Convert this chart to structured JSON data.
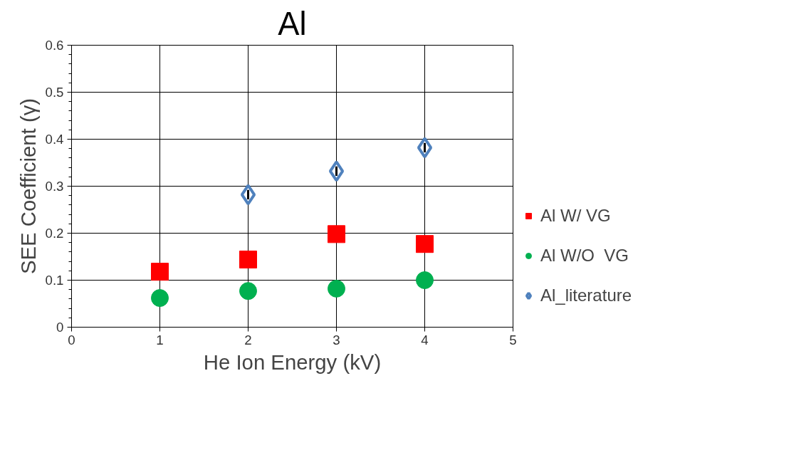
{
  "chart_data": {
    "type": "scatter",
    "title": "Al",
    "xlabel": "He Ion Energy (kV)",
    "ylabel": "SEE Coefficient (γ)",
    "xlim": [
      0,
      5
    ],
    "xticks": [
      0,
      1,
      2,
      3,
      4,
      5
    ],
    "ylim": [
      0,
      0.6
    ],
    "yticks": [
      0,
      0.1,
      0.2,
      0.3,
      0.4,
      0.5,
      0.6
    ],
    "grid": true,
    "legend": "right",
    "series": [
      {
        "name": "Al W/ VG",
        "color": "#ff0000",
        "marker": "square",
        "x": [
          1,
          2,
          3,
          4
        ],
        "values": [
          0.118,
          0.144,
          0.198,
          0.177
        ]
      },
      {
        "name": "Al W/O  VG",
        "color": "#00b050",
        "marker": "circle",
        "x": [
          1,
          2,
          3,
          4
        ],
        "values": [
          0.062,
          0.077,
          0.082,
          0.1
        ]
      },
      {
        "name": "Al_literature",
        "color": "#4f81bd",
        "marker": "diamond",
        "x": [
          2,
          3,
          4
        ],
        "values": [
          0.282,
          0.332,
          0.382
        ],
        "errors": [
          0.01,
          0.01,
          0.01
        ]
      }
    ]
  }
}
